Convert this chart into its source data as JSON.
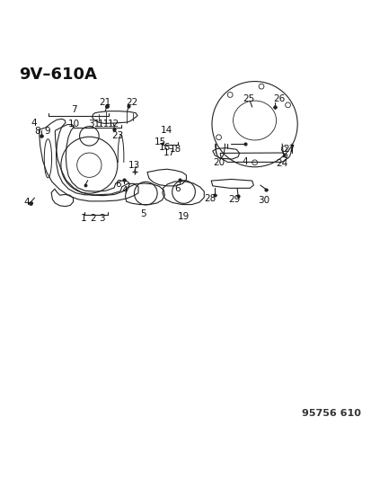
{
  "title": "9V–610A",
  "footer": "95756 610",
  "bg_color": "#ffffff",
  "title_fontsize": 13,
  "footer_fontsize": 8,
  "line_color": "#222222",
  "label_fontsize": 7.5
}
